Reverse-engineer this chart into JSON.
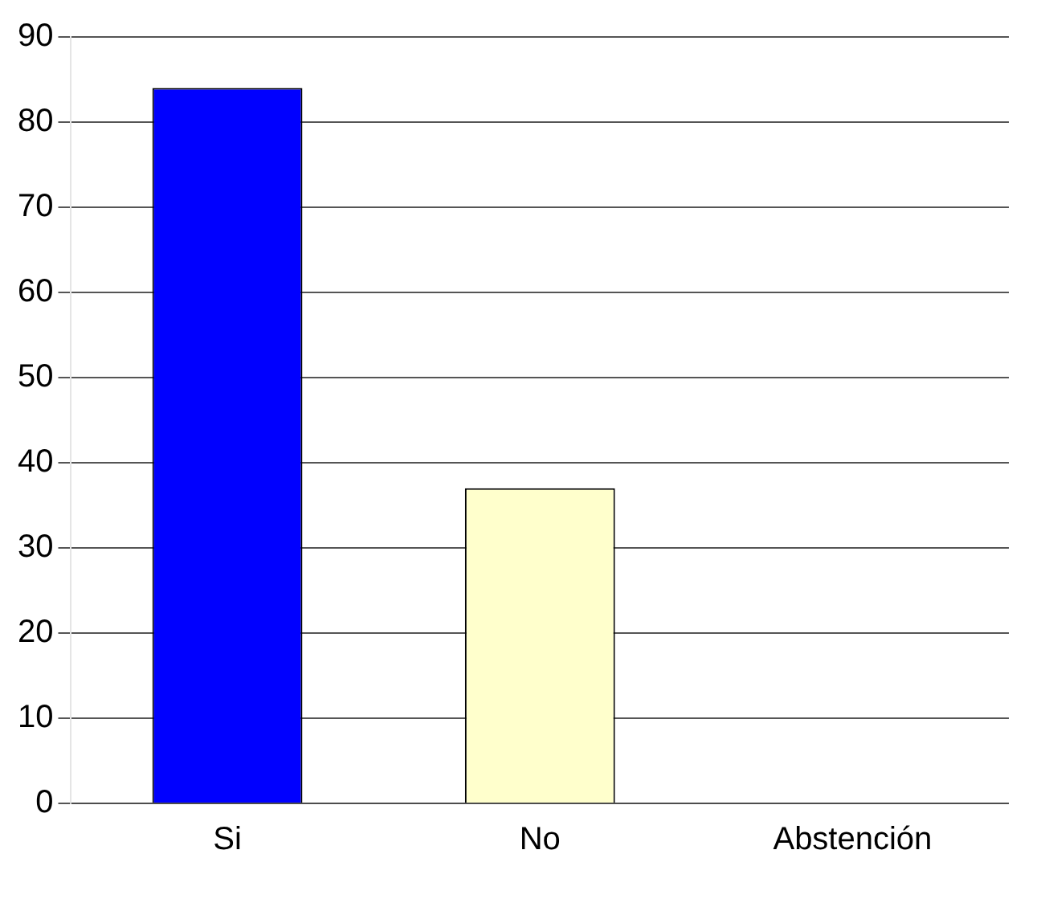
{
  "chart_data": {
    "type": "bar",
    "categories": [
      "Si",
      "No",
      "Abstención"
    ],
    "values": [
      84,
      37,
      0
    ],
    "colors": [
      "#0000ff",
      "#ffffcc",
      "#c0c0c0"
    ],
    "ylim": [
      0,
      90
    ],
    "yticks": [
      0,
      10,
      20,
      30,
      40,
      50,
      60,
      70,
      80,
      90
    ],
    "grid": "y",
    "legend": false
  }
}
